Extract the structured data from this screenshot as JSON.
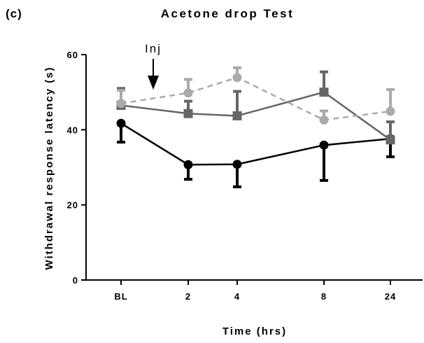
{
  "chart_data": {
    "type": "line",
    "panel_label": "(c)",
    "title": "Acetone drop Test",
    "xlabel": "Time (hrs)",
    "ylabel": "Withdrawal response latency (s)",
    "categories": [
      "BL",
      "2",
      "4",
      "8",
      "24"
    ],
    "ylim": [
      0,
      60
    ],
    "yticks": [
      0,
      20,
      40,
      60
    ],
    "grid": false,
    "legend": "none",
    "annotation": {
      "text": "Inj",
      "x_between": [
        "BL",
        "2"
      ]
    },
    "series": [
      {
        "values": [
          41.7,
          30.7,
          30.8,
          35.9,
          37.6
        ],
        "error": [
          5.0,
          3.9,
          6.0,
          9.4,
          4.8
        ],
        "error_direction": "down",
        "color": "#000000",
        "marker": "circle",
        "line": "solid"
      },
      {
        "values": [
          46.5,
          44.3,
          43.7,
          50.0,
          37.3
        ],
        "error": [
          4.5,
          3.3,
          6.5,
          5.4,
          4.8
        ],
        "error_direction": "up",
        "color": "#666666",
        "marker": "square",
        "line": "solid"
      },
      {
        "values": [
          47.0,
          49.8,
          53.9,
          42.6,
          44.9
        ],
        "error": [
          3.5,
          3.6,
          2.6,
          2.4,
          5.8
        ],
        "error_direction": "up",
        "color": "#aaaaaa",
        "marker": "circle",
        "line": "dashed"
      }
    ]
  }
}
